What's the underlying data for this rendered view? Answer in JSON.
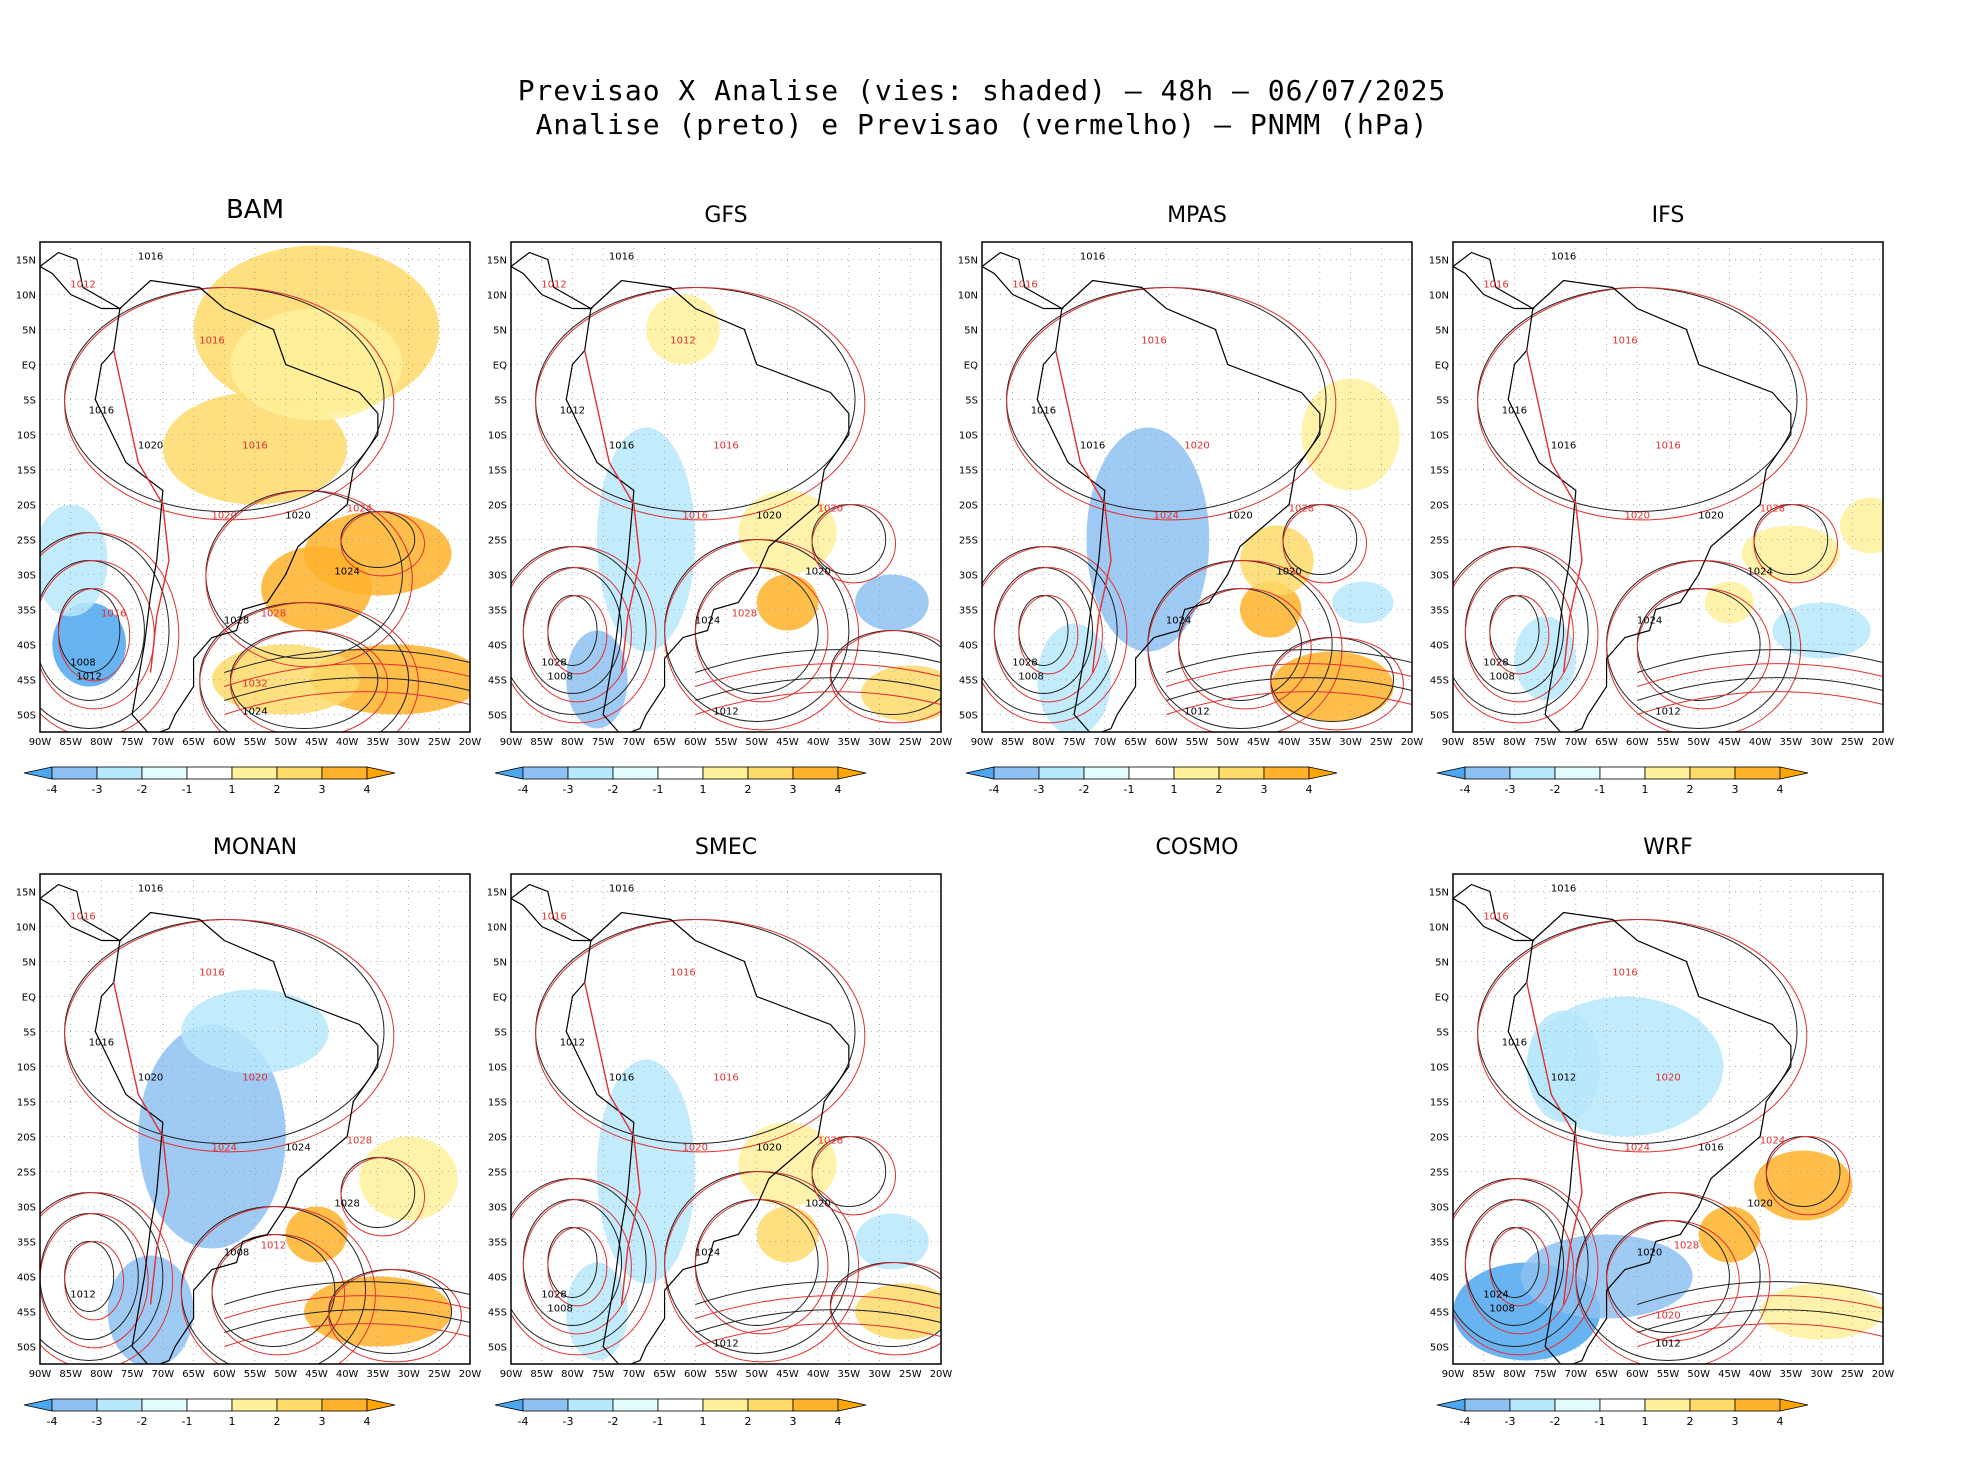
{
  "title": {
    "line1": "Previsao X Analise (vies: shaded) – 48h – 06/07/2025",
    "line2": "Analise (preto) e Previsao (vermelho) – PNMM (hPa)"
  },
  "axes": {
    "lat_labels": [
      "15N",
      "10N",
      "5N",
      "EQ",
      "5S",
      "10S",
      "15S",
      "20S",
      "25S",
      "30S",
      "35S",
      "40S",
      "45S",
      "50S"
    ],
    "lon_labels": [
      "90W",
      "85W",
      "80W",
      "75W",
      "70W",
      "65W",
      "60W",
      "55W",
      "50W",
      "45W",
      "40W",
      "35W",
      "30W",
      "25W",
      "20W"
    ]
  },
  "colorbar": {
    "labels": [
      "-4",
      "-3",
      "-2",
      "-1",
      "1",
      "2",
      "3",
      "4"
    ],
    "colors": [
      "#4da6ee",
      "#8ec1f2",
      "#b7e8fb",
      "#e2fbfd",
      "#ffffff",
      "#fff19c",
      "#fedb6b",
      "#ffb22a",
      "#ffa500"
    ]
  },
  "colors": {
    "analysis_contour": "#222222",
    "forecast_contour": "#e03030",
    "grid": "#999999"
  },
  "panels": [
    {
      "name": "BAM",
      "empty": false,
      "labels_black": [
        "1016",
        "1016",
        "1020",
        "1020",
        "1024",
        "1028",
        "1008",
        "1012",
        "1024"
      ],
      "labels_red": [
        "1012",
        "1016",
        "1016",
        "1020",
        "1024",
        "1028",
        "1032",
        "1016"
      ]
    },
    {
      "name": "GFS",
      "empty": false,
      "labels_black": [
        "1016",
        "1012",
        "1016",
        "1020",
        "1020",
        "1024",
        "1028",
        "1008",
        "1012"
      ],
      "labels_red": [
        "1012",
        "1012",
        "1016",
        "1016",
        "1020",
        "1028"
      ]
    },
    {
      "name": "MPAS",
      "empty": false,
      "labels_black": [
        "1016",
        "1016",
        "1016",
        "1020",
        "1020",
        "1024",
        "1028",
        "1008",
        "1012"
      ],
      "labels_red": [
        "1016",
        "1016",
        "1020",
        "1024",
        "1028"
      ]
    },
    {
      "name": "IFS",
      "empty": false,
      "labels_black": [
        "1016",
        "1016",
        "1016",
        "1020",
        "1024",
        "1024",
        "1028",
        "1008",
        "1012"
      ],
      "labels_red": [
        "1016",
        "1016",
        "1016",
        "1020",
        "1028"
      ]
    },
    {
      "name": "MONAN",
      "empty": false,
      "labels_black": [
        "1016",
        "1016",
        "1020",
        "1024",
        "1028",
        "1008",
        "1012"
      ],
      "labels_red": [
        "1016",
        "1016",
        "1020",
        "1024",
        "1028",
        "1012"
      ]
    },
    {
      "name": "SMEC",
      "empty": false,
      "labels_black": [
        "1016",
        "1012",
        "1016",
        "1020",
        "1020",
        "1024",
        "1028",
        "1008",
        "1012"
      ],
      "labels_red": [
        "1016",
        "1016",
        "1016",
        "1020",
        "1028"
      ]
    },
    {
      "name": "COSMO",
      "empty": true,
      "labels_black": [],
      "labels_red": []
    },
    {
      "name": "WRF",
      "empty": false,
      "labels_black": [
        "1016",
        "1016",
        "1012",
        "1016",
        "1020",
        "1020",
        "1024",
        "1008",
        "1012"
      ],
      "labels_red": [
        "1016",
        "1016",
        "1020",
        "1024",
        "1024",
        "1028",
        "1020"
      ]
    }
  ]
}
